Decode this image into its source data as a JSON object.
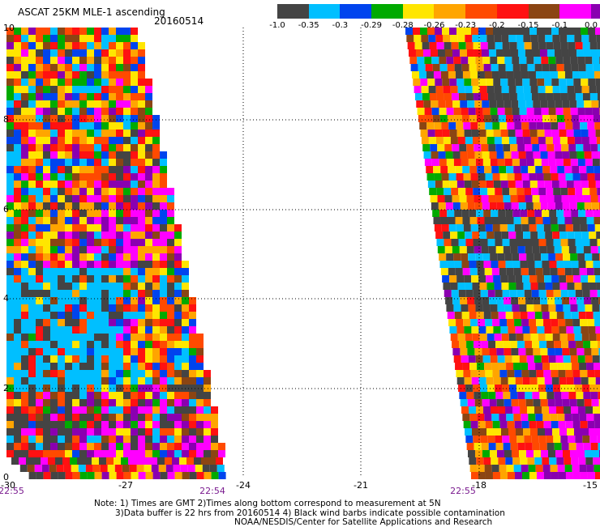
{
  "title": "ASCAT 25KM MLE-1 ascending",
  "date": "20160514",
  "legend": {
    "labels": [
      "-1.0",
      "-0.35",
      "-0.3",
      "-0.29",
      "-0.28",
      "-0.26",
      "-0.23",
      "-0.2",
      "-0.15",
      "-0.1",
      "0.0"
    ],
    "colors": [
      "#444444",
      "#00bfff",
      "#0044ee",
      "#00aa00",
      "#ffe600",
      "#ffa500",
      "#ff4a00",
      "#ff1111",
      "#8b4513",
      "#ff00ff",
      "#8a00b0"
    ]
  },
  "axes": {
    "y_ticks": [
      "0",
      "2",
      "4",
      "6",
      "8",
      "10"
    ],
    "x_ticks": [
      "-30",
      "-27",
      "-24",
      "-21",
      "-18",
      "-15"
    ]
  },
  "times": {
    "t1": "22:55",
    "t2": "22:54",
    "t3": "22:55"
  },
  "notes": {
    "line1": "Note: 1) Times are GMT 2)Times along bottom correspond to measurement at 5N",
    "line2": "3)Data buffer is 22 hrs from 20160514 4) Black wind barbs indicate possible contamination",
    "line3": "NOAA/NESDIS/Center for Satellite Applications and Research"
  }
}
